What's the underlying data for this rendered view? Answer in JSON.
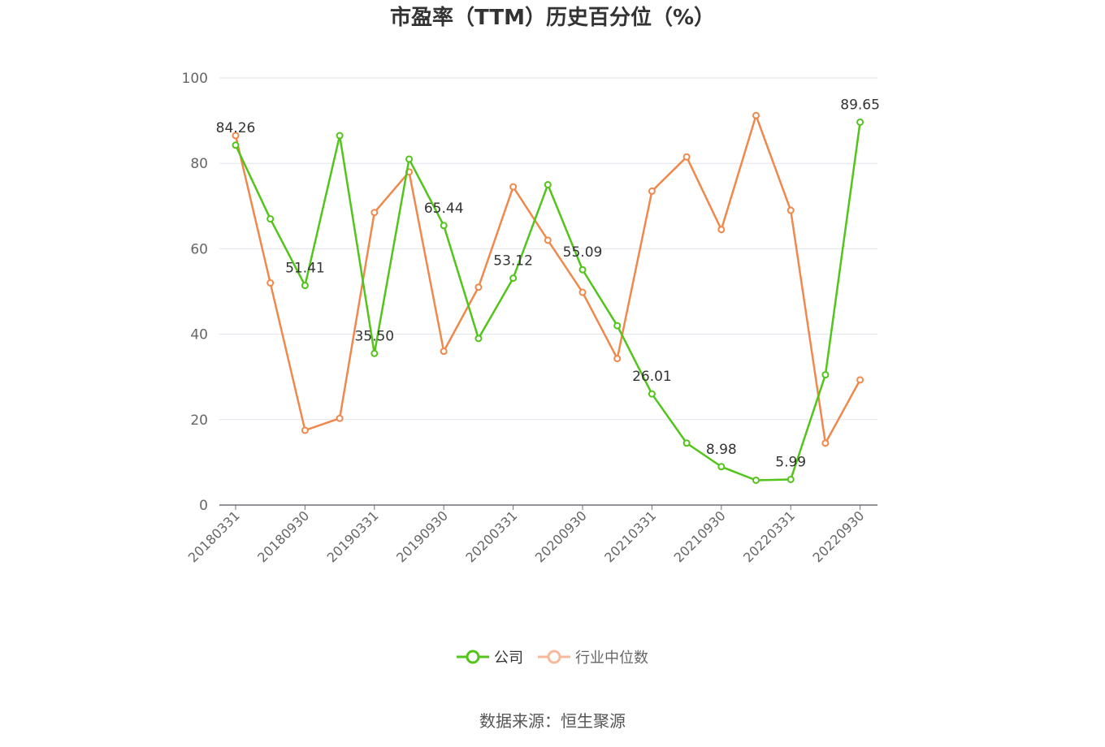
{
  "chart_data": {
    "type": "line",
    "title": "市盈率（TTM）历史百分位（%）",
    "xlabel": "",
    "ylabel": "",
    "ylim": [
      0,
      100
    ],
    "y_ticks": [
      0,
      20,
      40,
      60,
      80,
      100
    ],
    "grid": true,
    "legend_position": "bottom",
    "categories": [
      "20180331",
      "20180630",
      "20180930",
      "20181231",
      "20190331",
      "20190630",
      "20190930",
      "20191231",
      "20200331",
      "20200630",
      "20200930",
      "20201231",
      "20210331",
      "20210630",
      "20210930",
      "20211231",
      "20220331",
      "20220630",
      "20220930"
    ],
    "x_tick_labels": [
      "20180331",
      "20180930",
      "20190331",
      "20190930",
      "20200331",
      "20200930",
      "20210331",
      "20210930",
      "20220331",
      "20220930"
    ],
    "series": [
      {
        "name": "公司",
        "color": "#52c41a",
        "values": [
          84.26,
          67.0,
          51.41,
          86.5,
          35.5,
          81.0,
          65.44,
          39.0,
          53.12,
          75.0,
          55.09,
          42.0,
          26.01,
          14.5,
          8.98,
          5.8,
          5.99,
          30.5,
          89.65
        ],
        "labels": [
          "84.26",
          "",
          "51.41",
          "",
          "35.50",
          "",
          "65.44",
          "",
          "53.12",
          "",
          "55.09",
          "",
          "26.01",
          "",
          "8.98",
          "",
          "5.99",
          "",
          "89.65"
        ]
      },
      {
        "name": "行业中位数",
        "color": "#f0884c",
        "values": [
          86.5,
          52.0,
          17.5,
          20.3,
          68.5,
          78.0,
          36.0,
          51.0,
          74.5,
          62.0,
          49.8,
          34.3,
          73.5,
          81.5,
          64.5,
          91.2,
          69.0,
          14.5,
          29.3
        ]
      }
    ]
  },
  "legend": {
    "company_label": "公司",
    "industry_label": "行业中位数"
  },
  "source_text": "数据来源：恒生聚源"
}
